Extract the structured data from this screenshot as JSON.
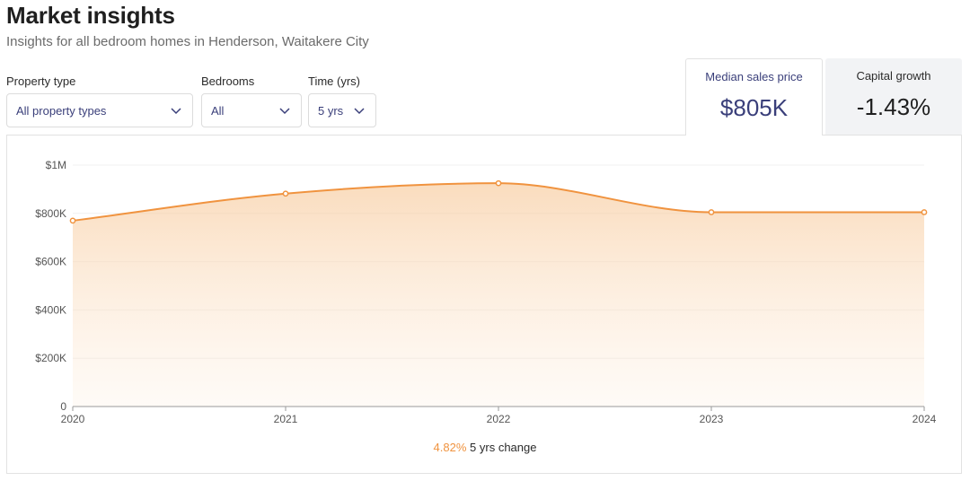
{
  "header": {
    "title": "Market insights",
    "subtitle": "Insights for all bedroom homes in Henderson, Waitakere City"
  },
  "filters": {
    "property_type": {
      "label": "Property type",
      "value": "All property types"
    },
    "bedrooms": {
      "label": "Bedrooms",
      "value": "All"
    },
    "time": {
      "label": "Time (yrs)",
      "value": "5 yrs"
    }
  },
  "metrics": {
    "median": {
      "label": "Median sales price",
      "value": "$805K"
    },
    "growth": {
      "label": "Capital growth",
      "value": "-1.43%"
    }
  },
  "change": {
    "percent": "4.82%",
    "text": "5 yrs change"
  },
  "colors": {
    "accent": "#f0933f",
    "brand": "#3a3f7a"
  },
  "chart_data": {
    "type": "area",
    "x": [
      2020,
      2021,
      2022,
      2023,
      2024
    ],
    "series": [
      {
        "values": [
          770000,
          882000,
          925000,
          805000,
          805000
        ]
      }
    ],
    "y_ticks": [
      "0",
      "$200K",
      "$400K",
      "$600K",
      "$800K",
      "$1M"
    ],
    "x_ticks": [
      "2020",
      "2021",
      "2022",
      "2023",
      "2024"
    ],
    "ylim": [
      0,
      1000000
    ],
    "grid": true
  }
}
